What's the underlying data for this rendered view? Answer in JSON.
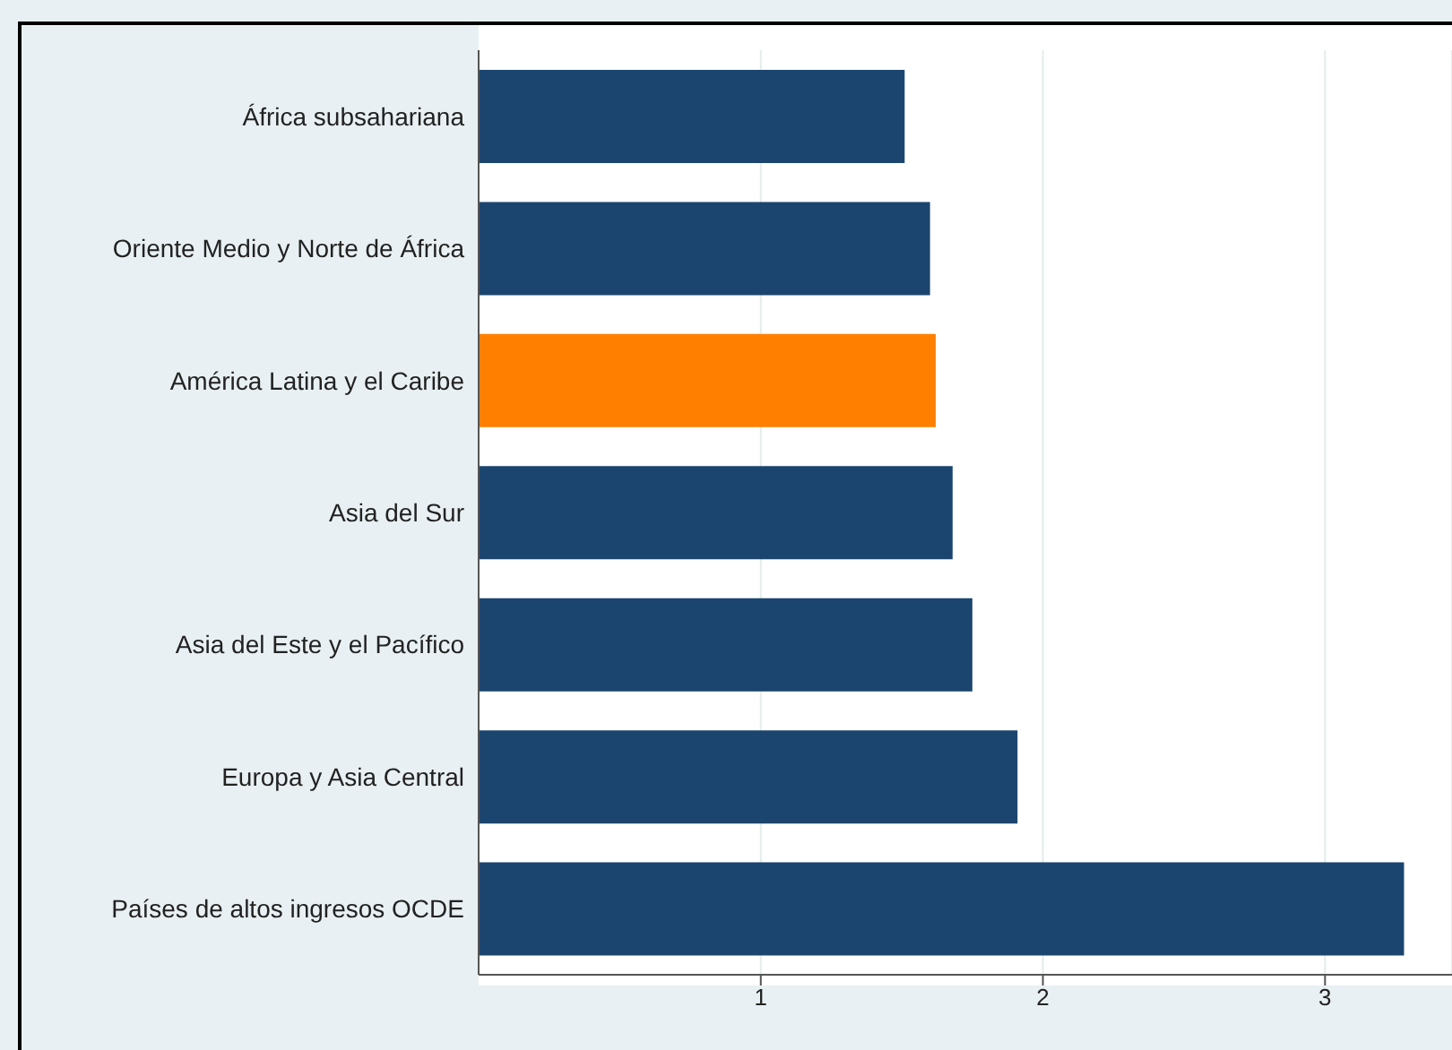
{
  "chart_data": {
    "type": "bar",
    "orientation": "horizontal",
    "categories": [
      "África subsahariana",
      "Oriente Medio y Norte de África",
      "América Latina y el Caribe",
      "Asia del Sur",
      "Asia del Este y el Pacífico",
      "Europa y Asia Central",
      "Países de altos ingresos OCDE"
    ],
    "values": [
      1.51,
      1.6,
      1.62,
      1.68,
      1.75,
      1.91,
      3.28
    ],
    "colors": [
      "#1b456e",
      "#1b456e",
      "#ff7f00",
      "#1b456e",
      "#1b456e",
      "#1b456e",
      "#1b456e"
    ],
    "xlim": [
      0,
      3.45
    ],
    "xticks": [
      1,
      2,
      3
    ],
    "grid": "x"
  }
}
